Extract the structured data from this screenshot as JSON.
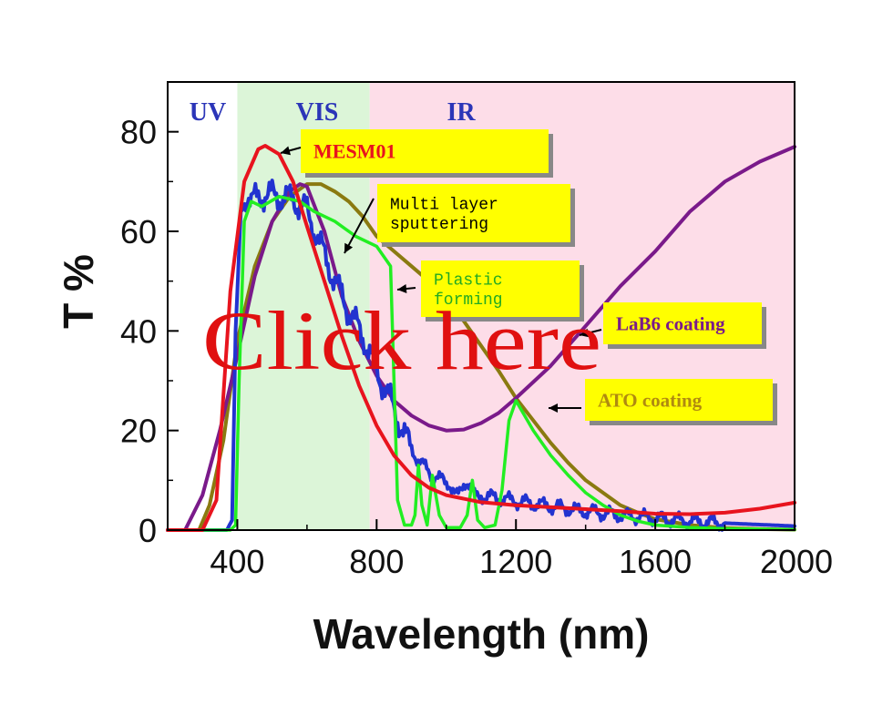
{
  "chart_data": {
    "type": "line",
    "xlabel": "Wavelength (nm)",
    "ylabel": "T %",
    "xlim": [
      200,
      2000
    ],
    "ylim": [
      0,
      90
    ],
    "xticks": [
      400,
      800,
      1200,
      1600,
      2000
    ],
    "yticks": [
      0,
      20,
      40,
      60,
      80
    ],
    "grid": false,
    "regions": [
      {
        "label": "UV",
        "x0": 200,
        "x1": 400,
        "color": "#ffffff",
        "label_color": "#2b35b8"
      },
      {
        "label": "VIS",
        "x0": 400,
        "x1": 780,
        "color": "#dcf5d8",
        "label_color": "#2b35b8"
      },
      {
        "label": "IR",
        "x0": 780,
        "x1": 2000,
        "color": "#fddde8",
        "label_color": "#2b35b8"
      }
    ],
    "series": [
      {
        "name": "MESM01",
        "color": "#e8141e",
        "label_color": "#e8141e",
        "x": [
          200,
          300,
          340,
          380,
          420,
          460,
          480,
          520,
          560,
          600,
          650,
          700,
          750,
          800,
          850,
          900,
          950,
          1000,
          1100,
          1200,
          1300,
          1400,
          1500,
          1600,
          1700,
          1800,
          1900,
          2000
        ],
        "y": [
          0,
          0,
          6,
          48,
          70,
          76.5,
          77.2,
          75.5,
          70,
          61,
          50,
          39,
          29,
          21,
          15,
          11,
          8.5,
          7,
          5.6,
          5,
          4.6,
          4.2,
          3.8,
          3.3,
          3.2,
          3.5,
          4.3,
          5.5
        ]
      },
      {
        "name": "Multi layer sputtering",
        "color": "#2233d0",
        "label_color": "#000000",
        "x": [
          200,
          370,
          385,
          395,
          410,
          440,
          480,
          520,
          560,
          600,
          640,
          680,
          720,
          760,
          800,
          840,
          880,
          920,
          960,
          1000,
          1050,
          1100,
          1200,
          1300,
          1400,
          1500,
          1600,
          1700,
          1800,
          1900,
          2000
        ],
        "y": [
          0,
          0,
          2,
          40,
          64,
          66,
          67.5,
          67,
          66.5,
          64,
          57,
          50,
          44,
          39,
          32,
          26,
          19,
          14,
          11,
          9.5,
          8,
          7,
          5.8,
          4.8,
          3.8,
          3,
          2.4,
          1.8,
          1.4,
          1.1,
          0.8
        ]
      },
      {
        "name": "Plastic forming",
        "color": "#22ee22",
        "label_color": "#22aa22",
        "x": [
          200,
          380,
          395,
          405,
          420,
          440,
          470,
          520,
          580,
          620,
          680,
          740,
          800,
          840,
          850,
          860,
          880,
          900,
          910,
          920,
          930,
          945,
          960,
          980,
          1000,
          1040,
          1060,
          1075,
          1090,
          1110,
          1140,
          1160,
          1180,
          1200,
          1250,
          1300,
          1350,
          1400,
          1450,
          1500,
          1550,
          1600,
          1700,
          1800,
          1900,
          2000
        ],
        "y": [
          0,
          0,
          1,
          30,
          62,
          66,
          65,
          67,
          66,
          64,
          62,
          59,
          57,
          53,
          30,
          6,
          1,
          1,
          3,
          13,
          5,
          1,
          11,
          3,
          0.5,
          0.5,
          3,
          10,
          2,
          0.5,
          1,
          8,
          22,
          26,
          20,
          15,
          11,
          7.5,
          5,
          3,
          1.8,
          1,
          0.5,
          0.3,
          0.2,
          0.1
        ]
      },
      {
        "name": "LaB6 coating",
        "color": "#7a1a8a",
        "label_color": "#7a1a8a",
        "x": [
          200,
          250,
          300,
          350,
          400,
          450,
          500,
          550,
          580,
          600,
          650,
          700,
          750,
          800,
          850,
          900,
          950,
          1000,
          1050,
          1100,
          1150,
          1200,
          1300,
          1400,
          1500,
          1600,
          1700,
          1800,
          1900,
          2000
        ],
        "y": [
          0,
          0,
          7,
          20,
          35,
          51,
          62,
          68,
          69.5,
          69,
          60,
          47,
          38,
          31,
          26,
          23,
          21,
          20,
          20.2,
          21.5,
          23.5,
          26.5,
          33,
          41,
          49,
          56,
          64,
          70,
          74,
          77
        ]
      },
      {
        "name": "ATO coating",
        "color": "#8a7a10",
        "label_color": "#b08a10",
        "x": [
          200,
          290,
          320,
          360,
          400,
          450,
          500,
          550,
          600,
          640,
          680,
          720,
          760,
          800,
          850,
          900,
          950,
          1000,
          1050,
          1100,
          1150,
          1200,
          1250,
          1300,
          1350,
          1400,
          1450,
          1500,
          1550,
          1600,
          1700,
          1800,
          1900,
          2000
        ],
        "y": [
          0,
          0,
          5,
          18,
          38,
          53,
          62,
          67,
          69.5,
          69.5,
          68,
          66,
          63,
          59,
          56,
          53,
          50,
          46,
          42,
          37,
          32,
          26.5,
          22,
          17.5,
          13.5,
          10,
          7.5,
          5,
          3.5,
          2.2,
          1,
          0.4,
          0.2,
          0.1
        ]
      }
    ],
    "annotations": [
      {
        "text": "MESM01",
        "series": "MESM01"
      },
      {
        "text": "Multi layer sputtering",
        "series": "Multi layer sputtering"
      },
      {
        "text": "Plastic forming",
        "series": "Plastic forming"
      },
      {
        "text": "LaB6 coating",
        "series": "LaB6 coating"
      },
      {
        "text": "ATO coating",
        "series": "ATO coating"
      }
    ],
    "overlay_text": "Click here",
    "overlay_color": "#e01010",
    "label_box_color": "#ffff00",
    "label_box_shadow": "#888888"
  }
}
